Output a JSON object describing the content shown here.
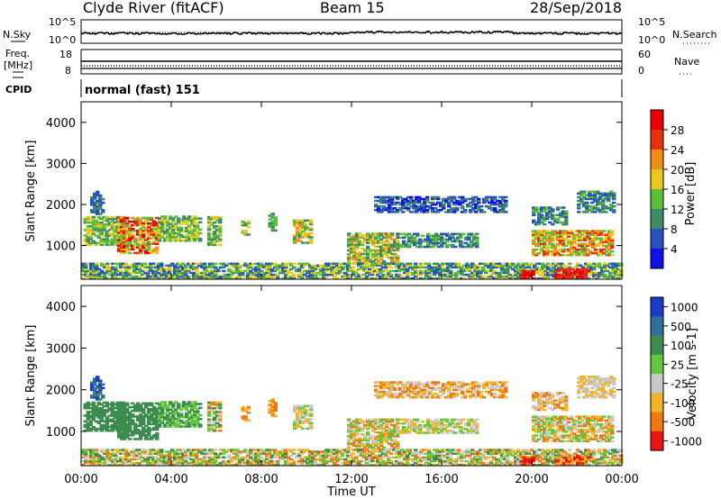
{
  "header": {
    "station": "Clyde River (fitACF)",
    "beam": "Beam 15",
    "date": "28/Sep/2018"
  },
  "chart_data": [
    {
      "type": "line",
      "name": "noise-panel",
      "left_label": "N.Sky",
      "right_label": "N.Search",
      "left_ticks": [
        "10^5",
        "10^0"
      ],
      "right_ticks": [
        "10^5",
        "10^0"
      ],
      "series": [
        {
          "name": "N.Sky",
          "style": "solid"
        },
        {
          "name": "N.Search",
          "style": "dotted"
        }
      ]
    },
    {
      "type": "line",
      "name": "frequency-panel",
      "left_label_top": "Freq.",
      "left_label_bottom": "[MHz]",
      "right_label": "Nave",
      "left_ticks": [
        "18",
        "8"
      ],
      "right_ticks": [
        "60",
        "0"
      ],
      "ylim_left": [
        8,
        18
      ],
      "ylim_right": [
        0,
        60
      ]
    },
    {
      "type": "table",
      "name": "cpid-panel",
      "label": "CPID",
      "program": "normal (fast) 151"
    },
    {
      "type": "heatmap",
      "name": "power-panel",
      "ylabel": "Slant Range [km]",
      "yticks": [
        "1000",
        "2000",
        "3000",
        "4000"
      ],
      "ylim": [
        180,
        4500
      ],
      "colorbar_label": "Power [dB]",
      "colorbar_ticks": [
        "4",
        "8",
        "12",
        "16",
        "20",
        "24",
        "28"
      ],
      "colorbar_range": [
        0,
        30
      ],
      "colors": [
        "#1010e8",
        "#2a52be",
        "#3c8c68",
        "#5bbf3c",
        "#e8c81c",
        "#f08c18",
        "#e83010",
        "#e80000"
      ]
    },
    {
      "type": "heatmap",
      "name": "velocity-panel",
      "ylabel": "Slant Range [km]",
      "yticks": [
        "1000",
        "2000",
        "3000",
        "4000"
      ],
      "ylim": [
        180,
        4500
      ],
      "colorbar_label": "Velocity [m s-1]",
      "colorbar_ticks": [
        "1000",
        "500",
        "100",
        "25",
        "-25",
        "-100",
        "-500",
        "-1000"
      ],
      "colors": [
        "#1a3cc8",
        "#2e6f9e",
        "#3c8c50",
        "#5fc83c",
        "#c8c8c8",
        "#f0b428",
        "#f07814",
        "#e81414"
      ],
      "xlabel": "Time UT",
      "xticks": [
        "00:00",
        "04:00",
        "08:00",
        "12:00",
        "16:00",
        "20:00",
        "00:00"
      ],
      "xlim_hours": [
        0,
        24
      ]
    }
  ]
}
